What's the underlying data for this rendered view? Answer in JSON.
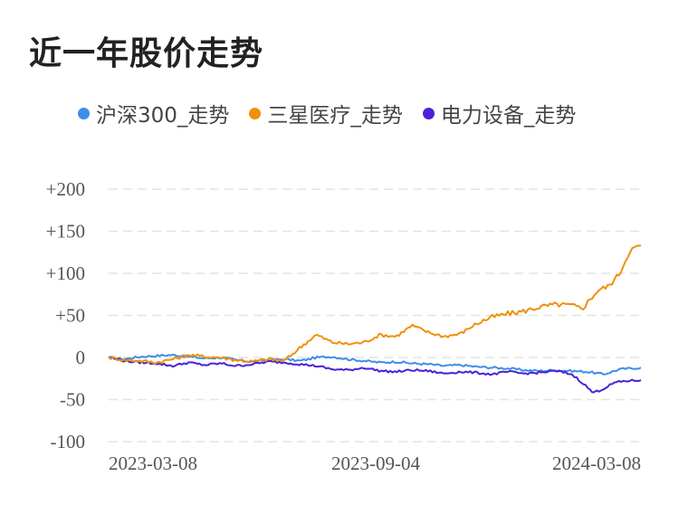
{
  "chart_data": {
    "type": "line",
    "title": "近一年股价走势",
    "x_ticks": [
      "2023-03-08",
      "2023-09-04",
      "2024-03-08"
    ],
    "y_ticks": [
      "+200",
      "+150",
      "+100",
      "+50",
      "0",
      "-50",
      "-100"
    ],
    "ylim": [
      -100,
      200
    ],
    "grid": true,
    "legend_position": "top",
    "series": [
      {
        "name": "沪深300_走势",
        "color": "#3b8fe6",
        "x": [
          0,
          0.03,
          0.06,
          0.09,
          0.12,
          0.15,
          0.18,
          0.21,
          0.24,
          0.27,
          0.3,
          0.33,
          0.36,
          0.39,
          0.42,
          0.45,
          0.48,
          0.51,
          0.54,
          0.57,
          0.6,
          0.63,
          0.66,
          0.69,
          0.72,
          0.75,
          0.78,
          0.81,
          0.84,
          0.87,
          0.9,
          0.93,
          0.96,
          1.0
        ],
        "values": [
          0,
          -2,
          1,
          2,
          3,
          1,
          -1,
          0,
          -3,
          -5,
          -3,
          -2,
          -4,
          0,
          1,
          -2,
          -4,
          -6,
          -5,
          -7,
          -8,
          -10,
          -9,
          -11,
          -12,
          -13,
          -15,
          -16,
          -15,
          -16,
          -17,
          -20,
          -14,
          -12
        ]
      },
      {
        "name": "三星医疗_走势",
        "color": "#f0900c",
        "x": [
          0,
          0.03,
          0.06,
          0.09,
          0.12,
          0.15,
          0.18,
          0.21,
          0.24,
          0.27,
          0.3,
          0.33,
          0.36,
          0.39,
          0.42,
          0.45,
          0.48,
          0.51,
          0.54,
          0.57,
          0.6,
          0.63,
          0.66,
          0.69,
          0.72,
          0.75,
          0.78,
          0.81,
          0.84,
          0.87,
          0.89,
          0.9,
          0.92,
          0.94,
          0.96,
          0.98,
          1.0
        ],
        "values": [
          0,
          -3,
          -4,
          -6,
          -2,
          3,
          1,
          0,
          -3,
          -5,
          -2,
          -4,
          12,
          27,
          18,
          16,
          18,
          27,
          25,
          38,
          30,
          25,
          28,
          40,
          48,
          52,
          55,
          60,
          63,
          62,
          58,
          66,
          80,
          85,
          100,
          128,
          133
        ]
      },
      {
        "name": "电力设备_走势",
        "color": "#4b22d6",
        "x": [
          0,
          0.03,
          0.06,
          0.09,
          0.12,
          0.15,
          0.18,
          0.21,
          0.24,
          0.27,
          0.3,
          0.33,
          0.36,
          0.39,
          0.42,
          0.45,
          0.48,
          0.51,
          0.54,
          0.57,
          0.6,
          0.63,
          0.66,
          0.69,
          0.72,
          0.75,
          0.78,
          0.81,
          0.84,
          0.87,
          0.89,
          0.91,
          0.93,
          0.95,
          0.97,
          1.0
        ],
        "values": [
          0,
          -4,
          -6,
          -7,
          -10,
          -6,
          -9,
          -7,
          -10,
          -8,
          -5,
          -6,
          -8,
          -10,
          -14,
          -15,
          -12,
          -16,
          -17,
          -15,
          -16,
          -19,
          -17,
          -18,
          -20,
          -17,
          -19,
          -18,
          -16,
          -20,
          -30,
          -42,
          -37,
          -30,
          -28,
          -27
        ]
      }
    ]
  }
}
